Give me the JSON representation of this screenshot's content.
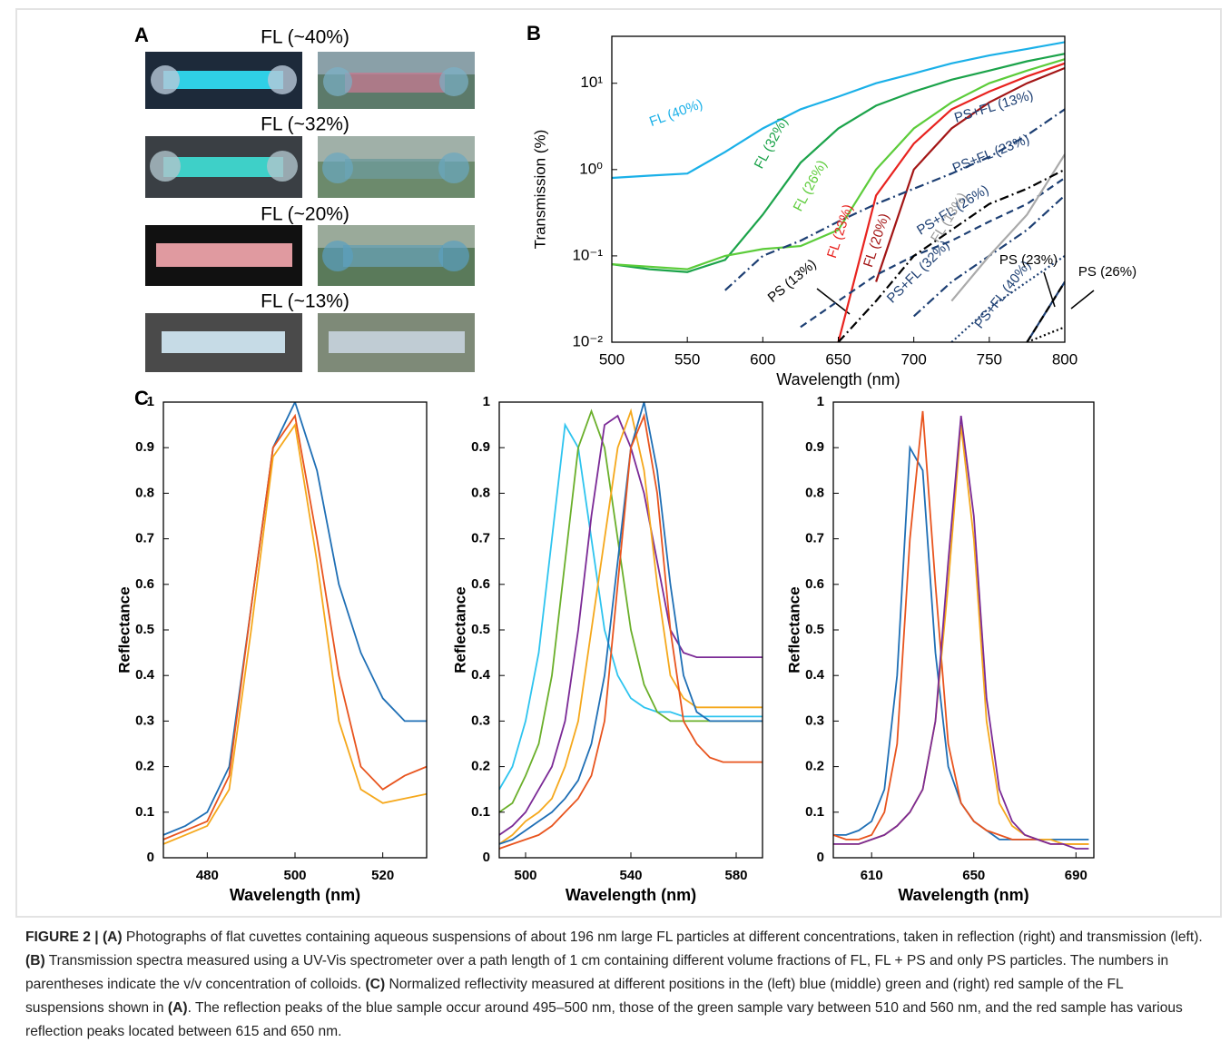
{
  "panel_a": {
    "label": "A",
    "photos": [
      {
        "title": "FL (~40%)"
      },
      {
        "title": "FL (~32%)"
      },
      {
        "title": "FL (~20%)"
      },
      {
        "title": "FL (~13%)"
      }
    ]
  },
  "chart_data": [
    {
      "type": "line",
      "panel": "B",
      "xlabel": "Wavelength (nm)",
      "ylabel": "Transmission (%)",
      "yscale": "log",
      "x": [
        500,
        525,
        550,
        575,
        600,
        625,
        650,
        675,
        700,
        725,
        750,
        775,
        800
      ],
      "xlim": [
        500,
        800
      ],
      "xticks": [
        500,
        550,
        600,
        650,
        700,
        750,
        800
      ],
      "ylim": [
        0.01,
        35
      ],
      "yticks": [
        {
          "value": 0.01,
          "label": "10⁻²"
        },
        {
          "value": 0.1,
          "label": "10⁻¹"
        },
        {
          "value": 1,
          "label": "10⁰"
        },
        {
          "value": 10,
          "label": "10¹"
        }
      ],
      "series": [
        {
          "name": "FL (40%)",
          "color": "#1ab0e8",
          "dash": "solid",
          "values": [
            0.8,
            0.85,
            0.9,
            1.6,
            3,
            5,
            7,
            10,
            13,
            17,
            21,
            25,
            30
          ]
        },
        {
          "name": "FL (32%)",
          "color": "#1ba34a",
          "dash": "solid",
          "values": [
            0.08,
            0.07,
            0.065,
            0.09,
            0.3,
            1.2,
            3,
            5.5,
            8,
            11,
            14,
            18,
            22
          ]
        },
        {
          "name": "FL (26%)",
          "color": "#5ccc3a",
          "dash": "solid",
          "values": [
            0.08,
            0.075,
            0.07,
            0.1,
            0.12,
            0.13,
            0.2,
            1,
            3,
            6,
            10,
            14,
            19
          ]
        },
        {
          "name": "FL (23%)",
          "color": "#e8231f",
          "dash": "solid",
          "values": [
            null,
            null,
            null,
            null,
            null,
            null,
            0.01,
            0.5,
            2,
            5,
            8,
            12,
            17
          ]
        },
        {
          "name": "FL (20%)",
          "color": "#a31515",
          "dash": "solid",
          "values": [
            null,
            null,
            null,
            null,
            null,
            null,
            null,
            0.05,
            1,
            3,
            6,
            10,
            15
          ]
        },
        {
          "name": "PS+FL (13%)",
          "color": "#1d3f73",
          "dash": "dashdot",
          "values": [
            null,
            null,
            null,
            0.04,
            0.1,
            0.15,
            0.25,
            0.4,
            0.6,
            0.9,
            1.4,
            2.5,
            5
          ]
        },
        {
          "name": "PS+FL (23%)",
          "color": "#1d3f73",
          "dash": "dashed",
          "values": [
            null,
            null,
            null,
            null,
            null,
            0.015,
            0.03,
            0.06,
            0.1,
            0.15,
            0.25,
            0.4,
            0.8
          ]
        },
        {
          "name": "PS+FL (26%)",
          "color": "#1d3f73",
          "dash": "dashdot",
          "values": [
            null,
            null,
            null,
            null,
            null,
            null,
            null,
            null,
            0.02,
            0.05,
            0.1,
            0.2,
            0.5
          ]
        },
        {
          "name": "PS+FL (32%)",
          "color": "#1d3f73",
          "dash": "dotted",
          "values": [
            null,
            null,
            null,
            null,
            null,
            null,
            null,
            null,
            null,
            0.01,
            0.025,
            0.05,
            0.1
          ]
        },
        {
          "name": "PS+FL (40%)",
          "color": "#1d3f73",
          "dash": "solid",
          "values": [
            null,
            null,
            null,
            null,
            null,
            null,
            null,
            null,
            null,
            null,
            null,
            0.01,
            0.05
          ]
        },
        {
          "name": "FL (13%)",
          "color": "#aaaaaa",
          "dash": "solid",
          "values": [
            null,
            null,
            null,
            null,
            null,
            null,
            null,
            null,
            null,
            0.03,
            0.1,
            0.3,
            1.5
          ]
        },
        {
          "name": "PS (13%)",
          "color": "#000000",
          "dash": "dashdot",
          "values": [
            null,
            null,
            null,
            null,
            null,
            null,
            0.01,
            0.03,
            0.1,
            0.2,
            0.4,
            0.6,
            1
          ]
        },
        {
          "name": "PS (23%)",
          "color": "#000000",
          "dash": "dashed",
          "values": [
            null,
            null,
            null,
            null,
            null,
            null,
            null,
            null,
            null,
            null,
            null,
            0.01,
            0.05
          ]
        },
        {
          "name": "PS (26%)",
          "color": "#000000",
          "dash": "dotted",
          "values": [
            null,
            null,
            null,
            null,
            null,
            null,
            null,
            null,
            null,
            null,
            null,
            0.01,
            0.015
          ]
        }
      ]
    },
    {
      "type": "line",
      "panel": "C",
      "xlabel": "Wavelength (nm)",
      "ylabel": "Reflectance",
      "x": [
        470,
        475,
        480,
        485,
        490,
        495,
        500,
        505,
        510,
        515,
        520,
        525,
        530
      ],
      "xlim": [
        470,
        530
      ],
      "xticks": [
        480,
        500,
        520
      ],
      "ylim": [
        0,
        1
      ],
      "yticks": [
        0,
        0.1,
        0.2,
        0.3,
        0.4,
        0.5,
        0.6,
        0.7,
        0.8,
        0.9,
        1
      ],
      "series": [
        {
          "color": "#1f6fb5",
          "values": [
            0.05,
            0.07,
            0.1,
            0.2,
            0.55,
            0.9,
            1.0,
            0.85,
            0.6,
            0.45,
            0.35,
            0.3,
            0.3
          ]
        },
        {
          "color": "#e8541e",
          "values": [
            0.04,
            0.06,
            0.08,
            0.18,
            0.55,
            0.9,
            0.97,
            0.7,
            0.4,
            0.2,
            0.15,
            0.18,
            0.2
          ]
        },
        {
          "color": "#f5a81c",
          "values": [
            0.03,
            0.05,
            0.07,
            0.15,
            0.5,
            0.88,
            0.95,
            0.65,
            0.3,
            0.15,
            0.12,
            0.13,
            0.14
          ]
        }
      ]
    },
    {
      "type": "line",
      "xlabel": "Wavelength (nm)",
      "ylabel": "Reflectance",
      "x": [
        490,
        495,
        500,
        505,
        510,
        515,
        520,
        525,
        530,
        535,
        540,
        545,
        550,
        555,
        560,
        565,
        570,
        575,
        580,
        585,
        590
      ],
      "xlim": [
        490,
        590
      ],
      "xticks": [
        500,
        540,
        580
      ],
      "ylim": [
        0,
        1
      ],
      "yticks": [
        0,
        0.1,
        0.2,
        0.3,
        0.4,
        0.5,
        0.6,
        0.7,
        0.8,
        0.9,
        1
      ],
      "series": [
        {
          "color": "#2ec4ef",
          "values": [
            0.15,
            0.2,
            0.3,
            0.45,
            0.7,
            0.95,
            0.9,
            0.7,
            0.5,
            0.4,
            0.35,
            0.33,
            0.32,
            0.32,
            0.31,
            0.31,
            0.31,
            0.31,
            0.31,
            0.31,
            0.31
          ]
        },
        {
          "color": "#6aaf2a",
          "values": [
            0.1,
            0.12,
            0.18,
            0.25,
            0.4,
            0.65,
            0.9,
            0.98,
            0.9,
            0.7,
            0.5,
            0.38,
            0.32,
            0.3,
            0.3,
            0.3,
            0.3,
            0.3,
            0.3,
            0.3,
            0.3
          ]
        },
        {
          "color": "#7b2a96",
          "values": [
            0.05,
            0.07,
            0.1,
            0.15,
            0.2,
            0.3,
            0.5,
            0.75,
            0.95,
            0.97,
            0.9,
            0.8,
            0.65,
            0.5,
            0.45,
            0.44,
            0.44,
            0.44,
            0.44,
            0.44,
            0.44
          ]
        },
        {
          "color": "#f5a81c",
          "values": [
            0.03,
            0.05,
            0.08,
            0.1,
            0.13,
            0.2,
            0.3,
            0.5,
            0.7,
            0.9,
            0.98,
            0.85,
            0.6,
            0.4,
            0.35,
            0.33,
            0.33,
            0.33,
            0.33,
            0.33,
            0.33
          ]
        },
        {
          "color": "#1f6fb5",
          "values": [
            0.03,
            0.04,
            0.06,
            0.08,
            0.1,
            0.13,
            0.17,
            0.25,
            0.4,
            0.65,
            0.9,
            1.0,
            0.85,
            0.6,
            0.4,
            0.32,
            0.3,
            0.3,
            0.3,
            0.3,
            0.3
          ]
        },
        {
          "color": "#e8541e",
          "values": [
            0.02,
            0.03,
            0.04,
            0.05,
            0.07,
            0.1,
            0.13,
            0.18,
            0.3,
            0.6,
            0.9,
            0.97,
            0.8,
            0.5,
            0.3,
            0.25,
            0.22,
            0.21,
            0.21,
            0.21,
            0.21
          ]
        }
      ]
    },
    {
      "type": "line",
      "xlabel": "Wavelength (nm)",
      "ylabel": "Reflectance",
      "x": [
        595,
        600,
        605,
        610,
        615,
        620,
        625,
        630,
        635,
        640,
        645,
        650,
        655,
        660,
        665,
        670,
        675,
        680,
        685,
        690,
        695
      ],
      "xlim": [
        595,
        697
      ],
      "xticks": [
        610,
        650,
        690
      ],
      "ylim": [
        0,
        1
      ],
      "yticks": [
        0,
        0.1,
        0.2,
        0.3,
        0.4,
        0.5,
        0.6,
        0.7,
        0.8,
        0.9,
        1
      ],
      "series": [
        {
          "color": "#1f6fb5",
          "values": [
            0.05,
            0.05,
            0.06,
            0.08,
            0.15,
            0.4,
            0.9,
            0.85,
            0.45,
            0.2,
            0.12,
            0.08,
            0.06,
            0.04,
            0.04,
            0.04,
            0.04,
            0.04,
            0.04,
            0.04,
            0.04
          ]
        },
        {
          "color": "#e8541e",
          "values": [
            0.05,
            0.04,
            0.04,
            0.05,
            0.1,
            0.25,
            0.7,
            0.98,
            0.6,
            0.25,
            0.12,
            0.08,
            0.06,
            0.05,
            0.04,
            0.04,
            0.04,
            0.03,
            0.03,
            0.03,
            0.03
          ]
        },
        {
          "color": "#f5a81c",
          "values": [
            0.03,
            0.03,
            0.03,
            0.04,
            0.05,
            0.07,
            0.1,
            0.15,
            0.3,
            0.6,
            0.95,
            0.7,
            0.3,
            0.12,
            0.07,
            0.05,
            0.04,
            0.04,
            0.03,
            0.03,
            0.03
          ]
        },
        {
          "color": "#7b2a96",
          "values": [
            0.03,
            0.03,
            0.03,
            0.04,
            0.05,
            0.07,
            0.1,
            0.15,
            0.3,
            0.65,
            0.97,
            0.75,
            0.35,
            0.15,
            0.08,
            0.05,
            0.04,
            0.03,
            0.03,
            0.02,
            0.02
          ]
        }
      ]
    }
  ],
  "caption": [
    {
      "text": "FIGURE 2 | (A)",
      "bold": true
    },
    {
      "text": " Photographs of flat cuvettes containing aqueous suspensions of about 196 nm large FL particles at different concentrations, taken in reflection (right) and transmission (left). "
    },
    {
      "text": "(B)",
      "bold": true
    },
    {
      "text": " Transmission spectra measured using a UV-Vis spectrometer over a path length of 1 cm containing different volume fractions of FL, FL + PS and only PS particles. The numbers in parentheses indicate the v/v concentration of colloids. "
    },
    {
      "text": "(C)",
      "bold": true
    },
    {
      "text": " Normalized reflectivity measured at different positions in the (left) blue (middle) green and (right) red sample of the FL suspensions shown in "
    },
    {
      "text": "(A)",
      "bold": true
    },
    {
      "text": ". The reflection peaks of the blue sample occur around 495–500 nm, those of the green sample vary between 510 and 560 nm, and the red sample has various reflection peaks located between 615 and 650 nm."
    }
  ]
}
